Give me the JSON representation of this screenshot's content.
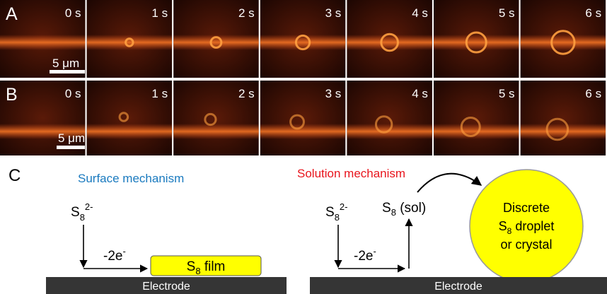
{
  "panels": [
    {
      "label": "A",
      "frames": [
        "0 s",
        "1 s",
        "2 s",
        "3 s",
        "4 s",
        "5 s",
        "6 s"
      ],
      "scale_bar": "5 μm"
    },
    {
      "label": "B",
      "frames": [
        "0 s",
        "1 s",
        "2 s",
        "3 s",
        "4 s",
        "5 s",
        "6 s"
      ],
      "scale_bar": "5 μm"
    }
  ],
  "mechanism": {
    "label": "C",
    "surface": {
      "title": "Surface mechanism",
      "reactant": {
        "base": "S",
        "sub": "8",
        "sup": "2-"
      },
      "electrons": {
        "base": "-2e",
        "sup": "-"
      },
      "product": {
        "base": "S",
        "sub": "8",
        "rest": " film"
      },
      "electrode": "Electrode"
    },
    "solution": {
      "title": "Solution mechanism",
      "reactant": {
        "base": "S",
        "sub": "8",
        "sup": "2-"
      },
      "electrons": {
        "base": "-2e",
        "sup": "-"
      },
      "intermediate": {
        "base": "S",
        "sub": "8",
        "rest": " (sol)"
      },
      "product": {
        "line1": "Discrete",
        "line2": {
          "base": "S",
          "sub": "8",
          "rest": " droplet"
        },
        "line3": "or crystal"
      },
      "electrode": "Electrode"
    }
  }
}
